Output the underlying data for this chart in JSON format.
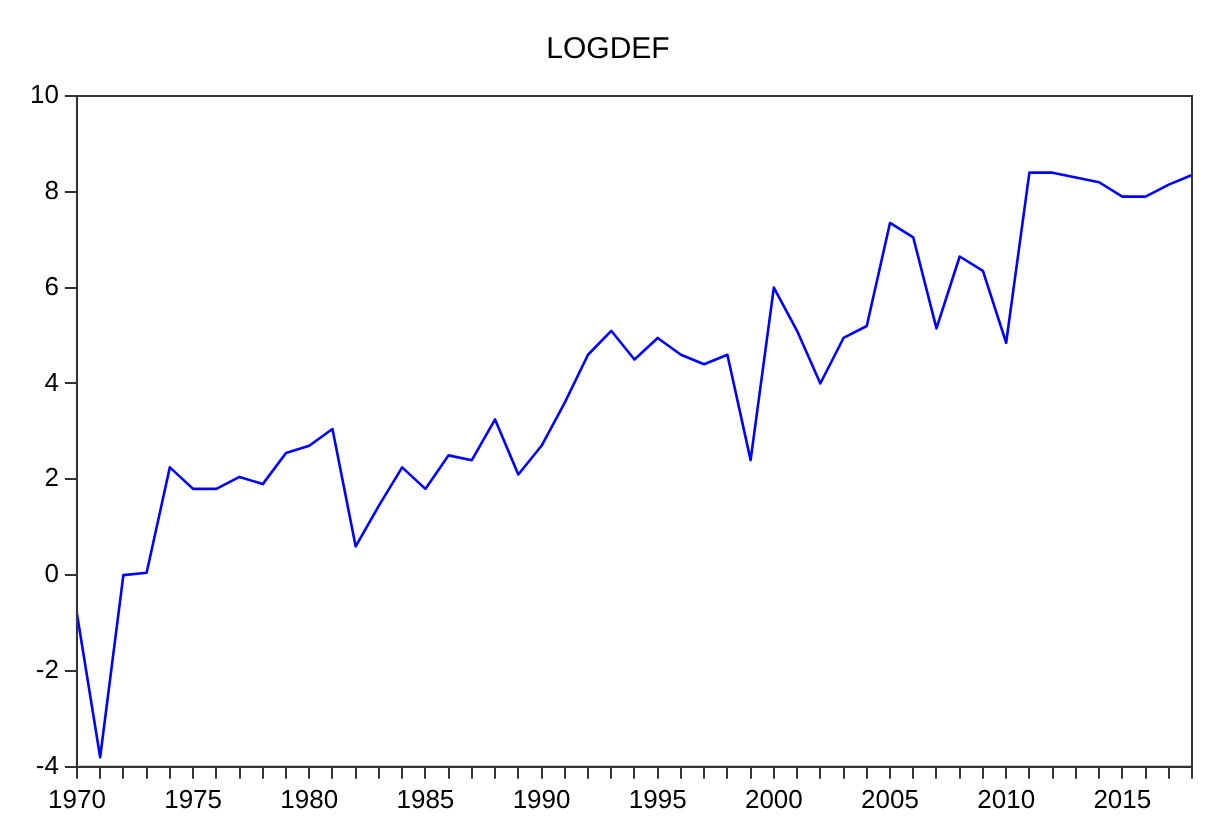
{
  "chart_data": {
    "type": "line",
    "title": "LOGDEF",
    "x": [
      1970,
      1971,
      1972,
      1973,
      1974,
      1975,
      1976,
      1977,
      1978,
      1979,
      1980,
      1981,
      1982,
      1983,
      1984,
      1985,
      1986,
      1987,
      1988,
      1989,
      1990,
      1991,
      1992,
      1993,
      1994,
      1995,
      1996,
      1997,
      1998,
      1999,
      2000,
      2001,
      2002,
      2003,
      2004,
      2005,
      2006,
      2007,
      2008,
      2009,
      2010,
      2011,
      2012,
      2013,
      2014,
      2015,
      2016,
      2017,
      2018
    ],
    "series": [
      {
        "color": "#0000ff",
        "values": [
          -0.8,
          -3.8,
          0.0,
          0.05,
          2.25,
          1.8,
          1.8,
          2.05,
          1.9,
          2.55,
          2.7,
          3.05,
          0.6,
          1.45,
          2.25,
          1.8,
          2.5,
          2.4,
          3.25,
          2.1,
          2.7,
          3.6,
          4.6,
          5.1,
          4.5,
          4.95,
          4.6,
          4.4,
          4.6,
          2.4,
          6.0,
          5.1,
          4.0,
          4.95,
          5.2,
          7.35,
          7.05,
          5.15,
          6.65,
          6.35,
          4.85,
          8.4,
          8.4,
          8.3,
          8.2,
          7.9,
          7.9,
          8.15,
          8.35
        ]
      }
    ],
    "xlim": [
      1970,
      2018
    ],
    "xticks": [
      1970,
      {
        "value": 1971,
        "label": null
      },
      {
        "value": 1972,
        "label": null
      },
      {
        "value": 1973,
        "label": null
      },
      {
        "value": 1974,
        "label": null
      },
      1975,
      {
        "value": 1976,
        "label": null
      },
      {
        "value": 1977,
        "label": null
      },
      {
        "value": 1978,
        "label": null
      },
      {
        "value": 1979,
        "label": null
      },
      1980,
      {
        "value": 1981,
        "label": null
      },
      {
        "value": 1982,
        "label": null
      },
      {
        "value": 1983,
        "label": null
      },
      {
        "value": 1984,
        "label": null
      },
      1985,
      {
        "value": 1986,
        "label": null
      },
      {
        "value": 1987,
        "label": null
      },
      {
        "value": 1988,
        "label": null
      },
      {
        "value": 1989,
        "label": null
      },
      1990,
      {
        "value": 1991,
        "label": null
      },
      {
        "value": 1992,
        "label": null
      },
      {
        "value": 1993,
        "label": null
      },
      {
        "value": 1994,
        "label": null
      },
      1995,
      {
        "value": 1996,
        "label": null
      },
      {
        "value": 1997,
        "label": null
      },
      {
        "value": 1998,
        "label": null
      },
      {
        "value": 1999,
        "label": null
      },
      2000,
      {
        "value": 2001,
        "label": null
      },
      {
        "value": 2002,
        "label": null
      },
      {
        "value": 2003,
        "label": null
      },
      {
        "value": 2004,
        "label": null
      },
      2005,
      {
        "value": 2006,
        "label": null
      },
      {
        "value": 2007,
        "label": null
      },
      {
        "value": 2008,
        "label": null
      },
      {
        "value": 2009,
        "label": null
      },
      2010,
      {
        "value": 2011,
        "label": null
      },
      {
        "value": 2012,
        "label": null
      },
      {
        "value": 2013,
        "label": null
      },
      {
        "value": 2014,
        "label": null
      },
      2015,
      {
        "value": 2016,
        "label": null
      },
      {
        "value": 2017,
        "label": null
      },
      {
        "value": 2018,
        "label": null
      }
    ],
    "ylim": [
      -4,
      10
    ],
    "yticks": [
      -4,
      -2,
      0,
      2,
      4,
      6,
      8,
      10
    ],
    "grid": false,
    "legend": false,
    "marker": "none",
    "line_style": "solid"
  }
}
